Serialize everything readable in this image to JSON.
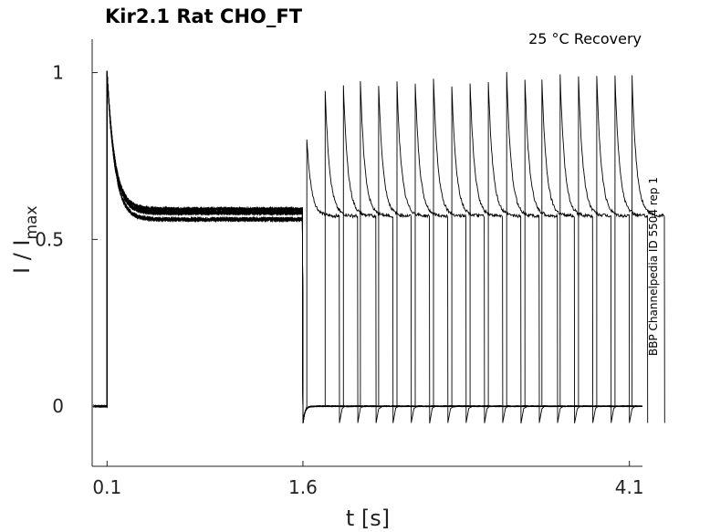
{
  "chart_data": {
    "type": "line",
    "title": "Kir2.1  Rat  CHO_FT",
    "subtitle": "25 °C  Recovery",
    "xlabel": "t [s]",
    "ylabel_main": "I / I",
    "ylabel_sub": "max",
    "side_note": "BBP Channelpedia ID 5504 rep 1",
    "x_ticks": [
      0.1,
      1.6,
      4.1
    ],
    "x_tick_labels": [
      "0.1",
      "1.6",
      "4.1"
    ],
    "y_ticks": [
      0,
      0.5,
      1
    ],
    "y_tick_labels": [
      "0",
      "0.5",
      "1"
    ],
    "xlim": [
      0.0,
      4.2
    ],
    "ylim": [
      -0.18,
      1.1
    ],
    "protocol": {
      "baseline_level": 0.0,
      "prepulse_start": 0.1,
      "prepulse_end": 1.6,
      "prepulse_peak": 1.0,
      "prepulse_steady": 0.58,
      "test_pulse_start_offsets_s": [
        0.03,
        0.17,
        0.31,
        0.44,
        0.58,
        0.72,
        0.86,
        1.0,
        1.14,
        1.28,
        1.42,
        1.56,
        1.7,
        1.83,
        1.97,
        2.11,
        2.25,
        2.39,
        2.52
      ],
      "test_pulse_peaks": [
        0.8,
        0.95,
        0.96,
        0.97,
        0.96,
        0.97,
        0.97,
        0.98,
        0.96,
        0.97,
        0.97,
        1.0,
        0.98,
        0.98,
        0.99,
        0.99,
        0.99,
        0.99,
        0.99
      ],
      "test_pulse_steady": 0.57,
      "test_pulse_duration_s": 0.25,
      "recovery_undershoot": -0.05
    },
    "grid": false
  }
}
